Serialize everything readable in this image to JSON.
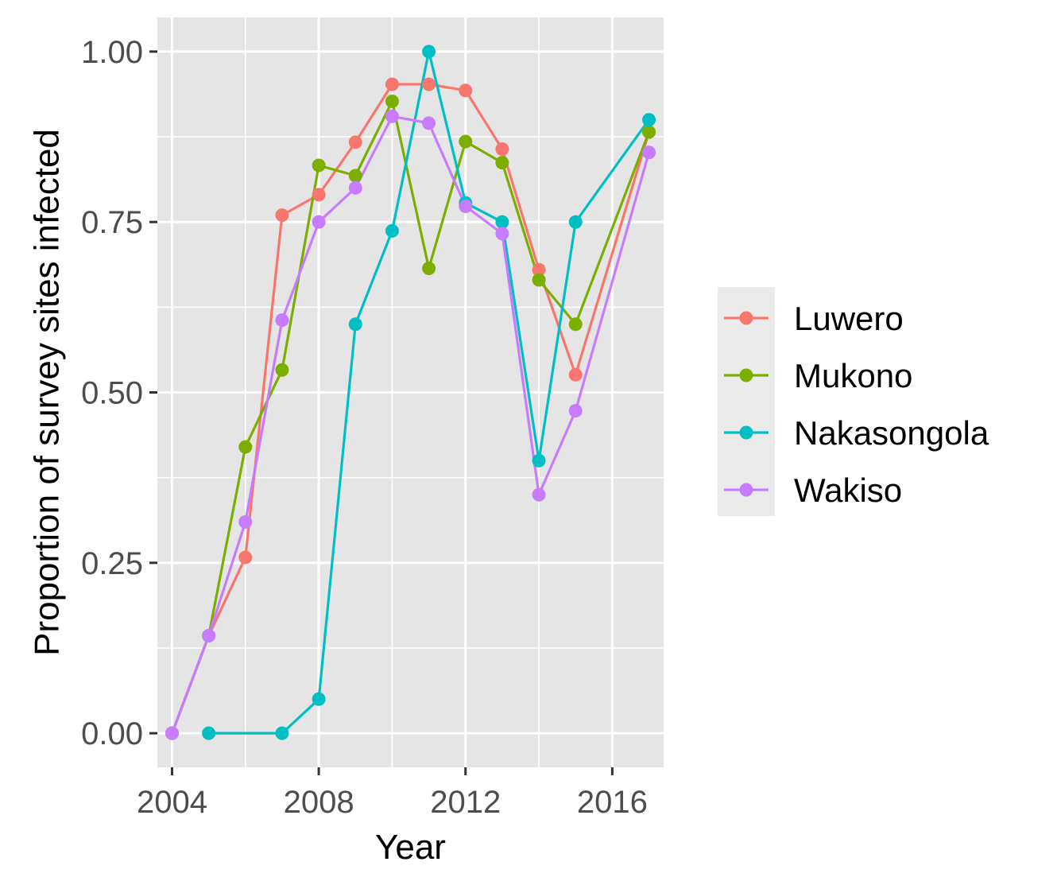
{
  "chart_data": {
    "type": "line",
    "title": "",
    "xlabel": "Year",
    "ylabel": "Proportion of survey sites infected",
    "xlim": [
      2003.6,
      2017.4
    ],
    "ylim": [
      -0.05,
      1.05
    ],
    "x_ticks": [
      2004,
      2008,
      2012,
      2016
    ],
    "x_tick_labels": [
      "2004",
      "2008",
      "2012",
      "2016"
    ],
    "y_ticks": [
      0,
      0.25,
      0.5,
      0.75,
      1.0
    ],
    "y_tick_labels": [
      "0.00",
      "0.25",
      "0.50",
      "0.75",
      "1.00"
    ],
    "grid": true,
    "legend_position": "right",
    "colors": {
      "panel_background": "#e5e5e5",
      "grid": "#ffffff",
      "legend_key_background": "#ebebeb"
    },
    "series": [
      {
        "name": "Luwero",
        "color": "#f8766d",
        "x": [
          2004,
          2005,
          2006,
          2007,
          2008,
          2009,
          2010,
          2011,
          2012,
          2013,
          2014,
          2015,
          2017
        ],
        "y": [
          0.0,
          0.143,
          0.258,
          0.76,
          0.79,
          0.867,
          0.952,
          0.952,
          0.943,
          0.857,
          0.68,
          0.526,
          0.882
        ]
      },
      {
        "name": "Mukono",
        "color": "#7cae00",
        "x": [
          2004,
          2005,
          2006,
          2007,
          2008,
          2009,
          2010,
          2011,
          2012,
          2013,
          2014,
          2015,
          2017
        ],
        "y": [
          0.0,
          0.143,
          0.42,
          0.533,
          0.833,
          0.818,
          0.927,
          0.682,
          0.868,
          0.837,
          0.665,
          0.6,
          0.882
        ]
      },
      {
        "name": "Nakasongola",
        "color": "#00bfc4",
        "x": [
          2005,
          2007,
          2008,
          2009,
          2010,
          2011,
          2012,
          2013,
          2014,
          2015,
          2017
        ],
        "y": [
          0.0,
          0.0,
          0.05,
          0.6,
          0.737,
          1.0,
          0.778,
          0.75,
          0.4,
          0.75,
          0.9
        ]
      },
      {
        "name": "Wakiso",
        "color": "#c77cff",
        "x": [
          2004,
          2005,
          2006,
          2007,
          2008,
          2009,
          2010,
          2011,
          2012,
          2013,
          2014,
          2015,
          2017
        ],
        "y": [
          0.0,
          0.143,
          0.31,
          0.606,
          0.75,
          0.8,
          0.905,
          0.895,
          0.773,
          0.733,
          0.35,
          0.473,
          0.852
        ]
      }
    ]
  }
}
